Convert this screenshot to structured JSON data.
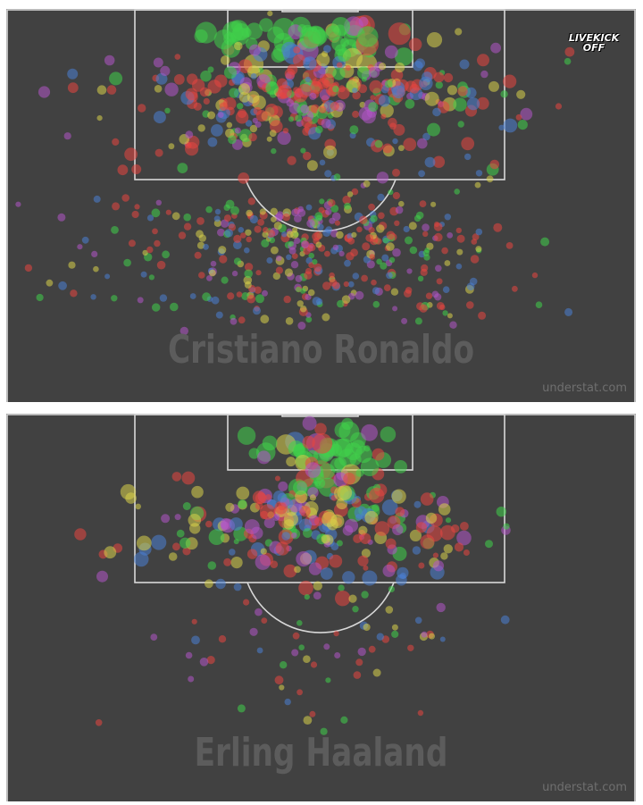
{
  "charts": [
    {
      "player_name": "Cristiano Ronaldo",
      "watermark": "understat.com",
      "logo_text": [
        "LIVEKICK",
        "OFF"
      ]
    },
    {
      "player_name": "Erling Haaland",
      "watermark": "understat.com"
    }
  ],
  "chart_data": [
    {
      "type": "scatter",
      "title": "Cristiano Ronaldo",
      "clusters": [
        {
          "name": "six-yard",
          "cx": 0.5,
          "cy": 0.07,
          "sx": 0.1,
          "sy": 0.04,
          "n": 70,
          "rmin": 5,
          "rmax": 13
        },
        {
          "name": "penalty-box",
          "cx": 0.5,
          "cy": 0.22,
          "sx": 0.16,
          "sy": 0.09,
          "n": 360,
          "rmin": 3,
          "rmax": 8
        },
        {
          "name": "edge-of-box",
          "cx": 0.48,
          "cy": 0.6,
          "sx": 0.16,
          "sy": 0.12,
          "n": 420,
          "rmin": 3,
          "rmax": 5
        }
      ],
      "colors": {
        "goal": "#3fd14a",
        "missed": "#e8463f",
        "saved": "#b256c9",
        "blocked": "#4a7fd4",
        "post": "#d9d24a"
      }
    },
    {
      "type": "scatter",
      "title": "Erling Haaland",
      "clusters": [
        {
          "name": "six-yard",
          "cx": 0.5,
          "cy": 0.1,
          "sx": 0.07,
          "sy": 0.06,
          "n": 60,
          "rmin": 6,
          "rmax": 12
        },
        {
          "name": "penalty-box",
          "cx": 0.49,
          "cy": 0.28,
          "sx": 0.13,
          "sy": 0.09,
          "n": 260,
          "rmin": 3,
          "rmax": 9
        },
        {
          "name": "outside-box",
          "cx": 0.48,
          "cy": 0.58,
          "sx": 0.13,
          "sy": 0.1,
          "n": 60,
          "rmin": 3,
          "rmax": 5
        }
      ],
      "colors": {
        "goal": "#3fd14a",
        "missed": "#e8463f",
        "saved": "#b256c9",
        "blocked": "#4a7fd4",
        "post": "#d9d24a"
      }
    }
  ]
}
